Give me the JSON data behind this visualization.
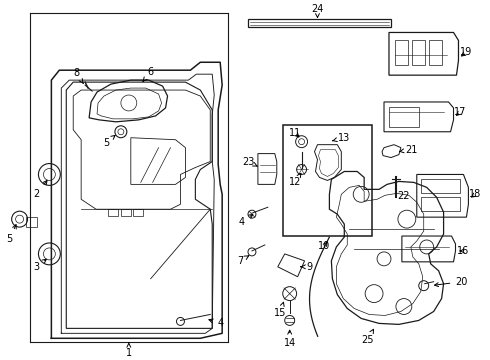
{
  "background_color": "#ffffff",
  "line_color": "#1a1a1a",
  "figure_width": 4.9,
  "figure_height": 3.6,
  "dpi": 100,
  "font_size": 7.0
}
